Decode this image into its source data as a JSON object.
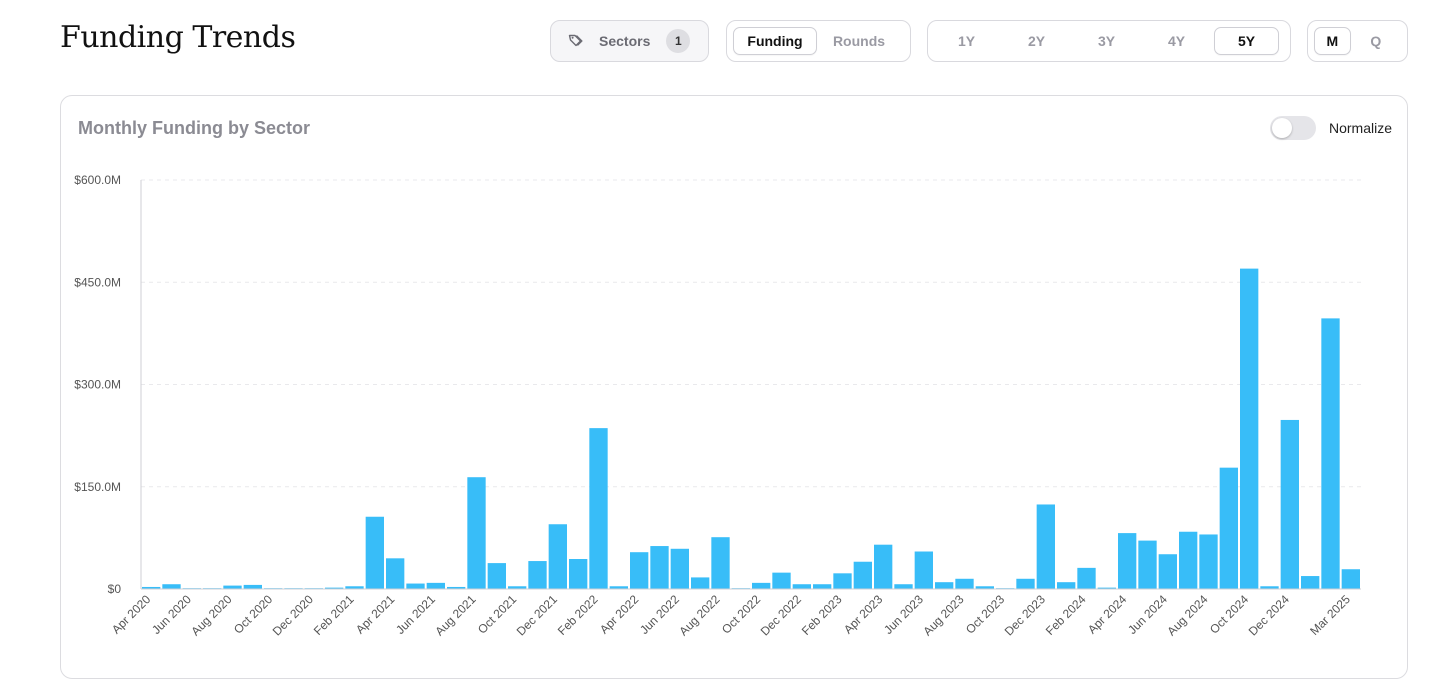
{
  "page": {
    "title": "Funding Trends"
  },
  "controls": {
    "sectors": {
      "label": "Sectors",
      "count": "1",
      "icon": "tag-icon"
    },
    "metric": {
      "options": [
        "Funding",
        "Rounds"
      ],
      "active": "Funding"
    },
    "period": {
      "options": [
        "1Y",
        "2Y",
        "3Y",
        "4Y",
        "5Y"
      ],
      "active": "5Y"
    },
    "granularity": {
      "options": [
        "M",
        "Q"
      ],
      "active": "M"
    }
  },
  "card": {
    "title": "Monthly Funding by Sector",
    "normalize_label": "Normalize",
    "normalize_on": false
  },
  "chart_data": {
    "type": "bar",
    "color": "#38bdf8",
    "grid": true,
    "ylim": [
      0,
      600
    ],
    "yticks": [
      {
        "value": 0,
        "label": "$0"
      },
      {
        "value": 150,
        "label": "$150.0M"
      },
      {
        "value": 300,
        "label": "$300.0M"
      },
      {
        "value": 450,
        "label": "$450.0M"
      },
      {
        "value": 600,
        "label": "$600.0M"
      }
    ],
    "categories": [
      "Apr 2020",
      "May 2020",
      "Jun 2020",
      "Jul 2020",
      "Aug 2020",
      "Sep 2020",
      "Oct 2020",
      "Nov 2020",
      "Dec 2020",
      "Jan 2021",
      "Feb 2021",
      "Mar 2021",
      "Apr 2021",
      "May 2021",
      "Jun 2021",
      "Jul 2021",
      "Aug 2021",
      "Sep 2021",
      "Oct 2021",
      "Nov 2021",
      "Dec 2021",
      "Jan 2022",
      "Feb 2022",
      "Mar 2022",
      "Apr 2022",
      "May 2022",
      "Jun 2022",
      "Jul 2022",
      "Aug 2022",
      "Sep 2022",
      "Oct 2022",
      "Nov 2022",
      "Dec 2022",
      "Jan 2023",
      "Feb 2023",
      "Mar 2023",
      "Apr 2023",
      "May 2023",
      "Jun 2023",
      "Jul 2023",
      "Aug 2023",
      "Sep 2023",
      "Oct 2023",
      "Nov 2023",
      "Dec 2023",
      "Jan 2024",
      "Feb 2024",
      "Mar 2024",
      "Apr 2024",
      "May 2024",
      "Jun 2024",
      "Jul 2024",
      "Aug 2024",
      "Sep 2024",
      "Oct 2024",
      "Nov 2024",
      "Dec 2024",
      "Jan 2025",
      "Feb 2025",
      "Mar 2025"
    ],
    "values": [
      3,
      7,
      1,
      1,
      5,
      6,
      1,
      1,
      1,
      2,
      4,
      106,
      45,
      8,
      9,
      3,
      164,
      38,
      4,
      41,
      95,
      44,
      236,
      4,
      54,
      63,
      59,
      17,
      76,
      1,
      9,
      24,
      7,
      7,
      23,
      40,
      65,
      7,
      55,
      10,
      15,
      4,
      1,
      15,
      124,
      10,
      31,
      2,
      82,
      71,
      51,
      84,
      80,
      178,
      470,
      4,
      248,
      19,
      397,
      29
    ],
    "xtick_labels": [
      {
        "index": 0,
        "label": "Apr 2020"
      },
      {
        "index": 2,
        "label": "Jun 2020"
      },
      {
        "index": 4,
        "label": "Aug 2020"
      },
      {
        "index": 6,
        "label": "Oct 2020"
      },
      {
        "index": 8,
        "label": "Dec 2020"
      },
      {
        "index": 10,
        "label": "Feb 2021"
      },
      {
        "index": 12,
        "label": "Apr 2021"
      },
      {
        "index": 14,
        "label": "Jun 2021"
      },
      {
        "index": 16,
        "label": "Aug 2021"
      },
      {
        "index": 18,
        "label": "Oct 2021"
      },
      {
        "index": 20,
        "label": "Dec 2021"
      },
      {
        "index": 22,
        "label": "Feb 2022"
      },
      {
        "index": 24,
        "label": "Apr 2022"
      },
      {
        "index": 26,
        "label": "Jun 2022"
      },
      {
        "index": 28,
        "label": "Aug 2022"
      },
      {
        "index": 30,
        "label": "Oct 2022"
      },
      {
        "index": 32,
        "label": "Dec 2022"
      },
      {
        "index": 34,
        "label": "Feb 2023"
      },
      {
        "index": 36,
        "label": "Apr 2023"
      },
      {
        "index": 38,
        "label": "Jun 2023"
      },
      {
        "index": 40,
        "label": "Aug 2023"
      },
      {
        "index": 42,
        "label": "Oct 2023"
      },
      {
        "index": 44,
        "label": "Dec 2023"
      },
      {
        "index": 46,
        "label": "Feb 2024"
      },
      {
        "index": 48,
        "label": "Apr 2024"
      },
      {
        "index": 50,
        "label": "Jun 2024"
      },
      {
        "index": 52,
        "label": "Aug 2024"
      },
      {
        "index": 54,
        "label": "Oct 2024"
      },
      {
        "index": 56,
        "label": "Dec 2024"
      },
      {
        "index": 59,
        "label": "Mar 2025"
      }
    ]
  }
}
